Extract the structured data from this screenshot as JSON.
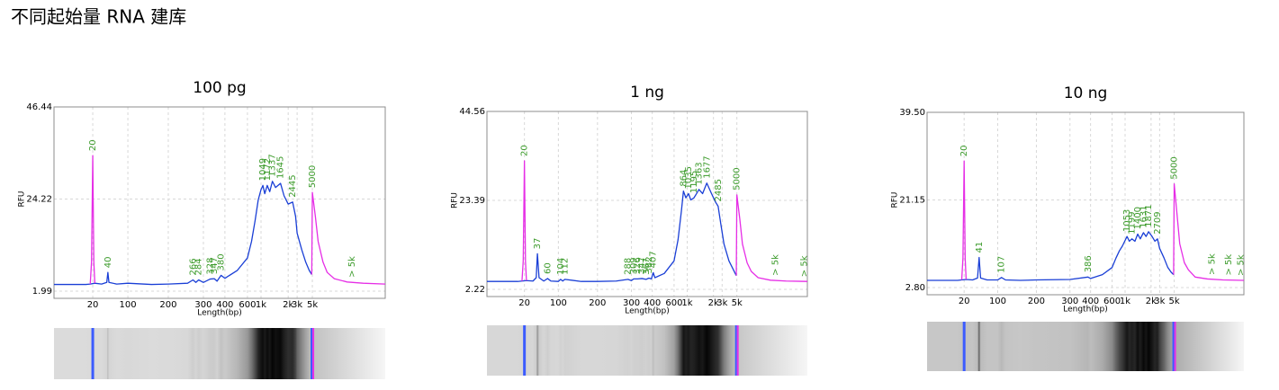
{
  "title": "不同起始量 RNA 建库",
  "chart_data": [
    {
      "type": "line",
      "title": "100 pg",
      "ylabel": "RFU",
      "xlabel": "Length(bp)",
      "xlim": [
        4,
        50000
      ],
      "xticks": [
        20,
        100,
        200,
        300,
        400,
        600,
        {
          "value": 1000,
          "label": "1k"
        },
        {
          "value": 2000,
          "label": "2k"
        },
        {
          "value": 3000,
          "label": "3k"
        },
        {
          "value": 5000,
          "label": "5k"
        }
      ],
      "ylim": [
        1.99,
        46.44
      ],
      "yticks": [
        1.99,
        24.22,
        46.44
      ],
      "grid": true,
      "series": [
        {
          "color": "#1a3fd6",
          "x": [
            4,
            15,
            18,
            22,
            30,
            38,
            40,
            42,
            60,
            100,
            150,
            200,
            250,
            266,
            275,
            284,
            300,
            328,
            347,
            360,
            380,
            400,
            500,
            600,
            700,
            800,
            900,
            1000,
            1049,
            1100,
            1172,
            1250,
            1337,
            1450,
            1645,
            1800,
            2000,
            2445,
            2800,
            3000,
            3500,
            4000,
            4500,
            4900
          ],
          "values": [
            3.6,
            3.6,
            3.7,
            3.9,
            3.7,
            4.1,
            6.5,
            4.1,
            3.7,
            3.9,
            3.6,
            3.7,
            3.9,
            4.7,
            4.1,
            4.7,
            4.1,
            4.9,
            5.0,
            4.4,
            5.8,
            5.1,
            7,
            10,
            14,
            19,
            24,
            26.5,
            27.5,
            25.5,
            27.5,
            26,
            28.5,
            27,
            28,
            25,
            23,
            23.5,
            20,
            16,
            12,
            9,
            7,
            6
          ]
        },
        {
          "color": "#e62ee6",
          "x": [
            18,
            19,
            20,
            21,
            22
          ],
          "values": [
            3.7,
            9,
            34.7,
            9,
            3.9
          ]
        },
        {
          "color": "#e62ee6",
          "x": [
            4900,
            5000,
            5500,
            6000,
            7000,
            8000,
            10000,
            15000,
            25000,
            50000
          ],
          "values": [
            6,
            25.8,
            20,
            14,
            9,
            6.5,
            5,
            4.2,
            3.9,
            3.7
          ]
        }
      ],
      "peak_label_color": "#3c9b2b",
      "peaks": [
        {
          "x": 20,
          "y": 34.7
        },
        {
          "x": 40,
          "y": 6.5
        },
        {
          "x": 266,
          "y": 4.7
        },
        {
          "x": 284,
          "y": 4.7
        },
        {
          "x": 328,
          "y": 4.9
        },
        {
          "x": 347,
          "y": 5.0
        },
        {
          "x": 380,
          "y": 5.8
        },
        {
          "x": 1049,
          "y": 27.5
        },
        {
          "x": 1172,
          "y": 27.5
        },
        {
          "x": 1337,
          "y": 28.5
        },
        {
          "x": 1645,
          "y": 28
        },
        {
          "x": 2445,
          "y": 23.5
        },
        {
          "x": 5000,
          "y": 25.8
        },
        {
          "x": 17500,
          "y": 4.2,
          "label": "> 5k"
        }
      ]
    },
    {
      "type": "line",
      "title": "1 ng",
      "ylabel": "RFU",
      "xlabel": "Length(bp)",
      "xlim": [
        4,
        50000
      ],
      "xticks": [
        20,
        100,
        200,
        300,
        400,
        600,
        {
          "value": 1000,
          "label": "1k"
        },
        {
          "value": 2000,
          "label": "2k"
        },
        {
          "value": 3000,
          "label": "3k"
        },
        {
          "value": 5000,
          "label": "5k"
        }
      ],
      "ylim": [
        2.22,
        44.56
      ],
      "yticks": [
        2.22,
        23.39,
        44.56
      ],
      "grid": true,
      "series": [
        {
          "color": "#1a3fd6",
          "x": [
            4,
            15,
            18,
            22,
            30,
            35,
            37,
            40,
            50,
            60,
            70,
            100,
            104,
            108,
            112,
            150,
            200,
            250,
            288,
            300,
            309,
            326,
            347,
            367,
            382,
            395,
            407,
            420,
            500,
            600,
            700,
            800,
            864,
            950,
            1035,
            1100,
            1195,
            1280,
            1363,
            1500,
            1677,
            1900,
            2200,
            2485,
            2800,
            3200,
            3800,
            4400,
            4900
          ],
          "values": [
            4.1,
            4.1,
            4.2,
            4.3,
            4.2,
            5,
            10.7,
            5,
            4.2,
            4.8,
            4.2,
            4.1,
            4.6,
            4.2,
            4.6,
            4.1,
            4.1,
            4.2,
            4.6,
            4.3,
            4.7,
            4.7,
            4.8,
            4.6,
            4.9,
            4.7,
            6.2,
            5.0,
            6,
            9,
            14,
            21,
            25.6,
            24,
            25,
            23.5,
            24,
            25,
            26,
            25,
            27.5,
            25,
            23,
            22,
            18,
            13,
            9,
            7,
            5.5
          ]
        },
        {
          "color": "#e62ee6",
          "x": [
            18,
            19,
            20,
            21,
            22
          ],
          "values": [
            4.2,
            9,
            32.8,
            9,
            4.3
          ]
        },
        {
          "color": "#e62ee6",
          "x": [
            4900,
            5000,
            5500,
            6000,
            7000,
            8000,
            10000,
            15000,
            25000,
            50000
          ],
          "values": [
            5.5,
            24.7,
            19,
            13,
            8.5,
            6.5,
            5,
            4.4,
            4.2,
            4.1
          ]
        }
      ],
      "peak_label_color": "#3c9b2b",
      "peaks": [
        {
          "x": 20,
          "y": 32.8
        },
        {
          "x": 37,
          "y": 10.7
        },
        {
          "x": 60,
          "y": 4.8
        },
        {
          "x": 104,
          "y": 4.6
        },
        {
          "x": 112,
          "y": 4.6
        },
        {
          "x": 288,
          "y": 4.6
        },
        {
          "x": 309,
          "y": 4.7
        },
        {
          "x": 326,
          "y": 4.7
        },
        {
          "x": 347,
          "y": 4.8
        },
        {
          "x": 367,
          "y": 4.6
        },
        {
          "x": 382,
          "y": 4.9
        },
        {
          "x": 407,
          "y": 6.2
        },
        {
          "x": 864,
          "y": 25.6
        },
        {
          "x": 1035,
          "y": 25
        },
        {
          "x": 1195,
          "y": 24
        },
        {
          "x": 1363,
          "y": 26
        },
        {
          "x": 1677,
          "y": 27.5
        },
        {
          "x": 2485,
          "y": 22
        },
        {
          "x": 5000,
          "y": 24.7
        },
        {
          "x": 17500,
          "y": 4.4,
          "label": "> 5k"
        },
        {
          "x": 45000,
          "y": 4.1,
          "label": "> 5k"
        }
      ]
    },
    {
      "type": "line",
      "title": "10 ng",
      "ylabel": "RFU",
      "xlabel": "Length(bp)",
      "xlim": [
        4,
        50000
      ],
      "xticks": [
        20,
        100,
        200,
        300,
        400,
        600,
        {
          "value": 1000,
          "label": "1k"
        },
        {
          "value": 2000,
          "label": "2k"
        },
        {
          "value": 3000,
          "label": "3k"
        },
        {
          "value": 5000,
          "label": "5k"
        }
      ],
      "ylim": [
        2.8,
        39.5
      ],
      "yticks": [
        {
          "value": 2.8,
          "label": "2.80"
        },
        21.15,
        {
          "value": 39.5,
          "label": "39.50"
        }
      ],
      "grid": true,
      "series": [
        {
          "color": "#1a3fd6",
          "x": [
            4,
            15,
            18,
            22,
            30,
            38,
            41,
            44,
            60,
            100,
            107,
            115,
            150,
            200,
            300,
            386,
            400,
            500,
            600,
            700,
            800,
            900,
            1053,
            1120,
            1199,
            1300,
            1400,
            1500,
            1631,
            1750,
            1871,
            2100,
            2400,
            2709,
            3000,
            3500,
            4000,
            4500,
            4900
          ],
          "values": [
            4.3,
            4.3,
            4.4,
            4.5,
            4.4,
            4.8,
            9.1,
            4.8,
            4.4,
            4.4,
            4.9,
            4.4,
            4.3,
            4.4,
            4.5,
            5.0,
            4.7,
            5.5,
            7,
            9,
            10.5,
            11.5,
            13.5,
            12.5,
            13,
            12.5,
            14,
            13,
            14.3,
            13.5,
            14.5,
            13.5,
            12.5,
            13,
            11,
            9,
            7,
            6,
            5.5
          ]
        },
        {
          "color": "#e62ee6",
          "x": [
            18,
            19,
            20,
            21,
            22
          ],
          "values": [
            4.4,
            9,
            29.3,
            9,
            4.5
          ]
        },
        {
          "color": "#e62ee6",
          "x": [
            4900,
            5000,
            5500,
            6000,
            7000,
            8000,
            10000,
            15000,
            25000,
            50000
          ],
          "values": [
            5.5,
            24.5,
            18,
            12,
            8,
            6.5,
            5,
            4.6,
            4.4,
            4.3
          ]
        }
      ],
      "peak_label_color": "#3c9b2b",
      "peaks": [
        {
          "x": 20,
          "y": 29.3
        },
        {
          "x": 41,
          "y": 9.1
        },
        {
          "x": 107,
          "y": 4.9
        },
        {
          "x": 386,
          "y": 5.0
        },
        {
          "x": 1053,
          "y": 13.5
        },
        {
          "x": 1199,
          "y": 13
        },
        {
          "x": 1400,
          "y": 14
        },
        {
          "x": 1631,
          "y": 14.3
        },
        {
          "x": 1871,
          "y": 14.5
        },
        {
          "x": 2709,
          "y": 13
        },
        {
          "x": 5000,
          "y": 24.5
        },
        {
          "x": 17500,
          "y": 4.5,
          "label": "> 5k"
        },
        {
          "x": 30000,
          "y": 4.4,
          "label": "> 5k"
        },
        {
          "x": 45000,
          "y": 4.3,
          "label": "> 5k"
        }
      ]
    }
  ]
}
